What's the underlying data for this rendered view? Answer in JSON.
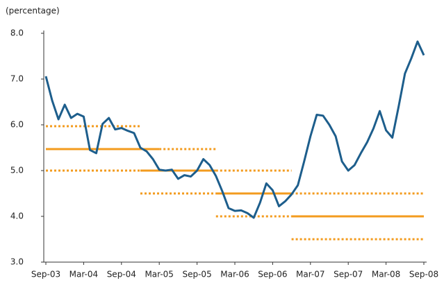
{
  "chart_data": {
    "type": "line",
    "y_label": "(percentage)",
    "categories": [
      "Sep-03",
      null,
      null,
      null,
      null,
      null,
      "Mar-04",
      null,
      null,
      null,
      null,
      null,
      "Sep-04",
      null,
      null,
      null,
      null,
      null,
      "Mar-05",
      null,
      null,
      null,
      null,
      null,
      "Sep-05",
      null,
      null,
      null,
      null,
      null,
      "Mar-06",
      null,
      null,
      null,
      null,
      null,
      "Sep-06",
      null,
      null,
      null,
      null,
      null,
      "Mar-07",
      null,
      null,
      null,
      null,
      null,
      "Sep-07",
      null,
      null,
      null,
      null,
      null,
      "Mar-08",
      null,
      null,
      null,
      null,
      null,
      "Sep-08"
    ],
    "ylim": [
      3,
      8
    ],
    "yticks": [
      {
        "value": 3,
        "label": "3.0"
      },
      {
        "value": 4,
        "label": "4.0"
      },
      {
        "value": 5,
        "label": "5.0"
      },
      {
        "value": 6,
        "label": "6.0"
      },
      {
        "value": 7,
        "label": "7.0"
      },
      {
        "value": 8,
        "label": "8.0"
      }
    ],
    "series": [
      {
        "color": "#1d5e8c",
        "width": 3,
        "dashed": false,
        "values": [
          7.06,
          6.53,
          6.12,
          6.44,
          6.15,
          6.24,
          6.18,
          5.45,
          5.38,
          6.02,
          6.15,
          5.9,
          5.93,
          5.87,
          5.82,
          5.5,
          5.42,
          5.25,
          5.02,
          5.0,
          5.02,
          4.82,
          4.9,
          4.87,
          5.0,
          5.25,
          5.12,
          4.88,
          4.55,
          4.18,
          4.12,
          4.13,
          4.07,
          3.97,
          4.3,
          4.72,
          4.57,
          4.22,
          4.33,
          4.48,
          4.68,
          5.2,
          5.75,
          6.22,
          6.2,
          6.0,
          5.75,
          5.2,
          5.0,
          5.12,
          5.38,
          5.62,
          5.92,
          6.3,
          5.88,
          5.72,
          6.4,
          7.12,
          7.45,
          7.82,
          7.52
        ]
      },
      {
        "color": "#f39b1e",
        "width": 3,
        "dashed": false,
        "values": [
          5.47,
          5.47,
          5.47,
          5.47,
          5.47,
          5.47,
          5.47,
          5.47,
          5.47,
          5.47,
          5.47,
          5.47,
          5.47,
          5.47,
          5.47,
          5.47,
          5.47,
          5.47,
          5.47,
          null,
          null,
          null,
          null,
          null,
          null,
          null,
          null,
          null,
          null,
          null,
          null,
          null,
          null,
          null,
          null,
          null,
          null,
          null,
          null,
          null,
          null,
          null,
          null,
          null,
          null,
          null,
          null,
          null,
          null,
          null,
          null,
          null,
          null,
          null,
          null,
          null,
          null,
          null,
          null,
          null,
          null
        ]
      },
      {
        "color": "#f39b1e",
        "width": 3,
        "dashed": false,
        "values": [
          null,
          null,
          null,
          null,
          null,
          null,
          null,
          null,
          null,
          null,
          null,
          null,
          null,
          null,
          null,
          5.0,
          5.0,
          5.0,
          5.0,
          5.0,
          5.0,
          5.0,
          5.0,
          5.0,
          5.0,
          5.0,
          5.0,
          5.0,
          null,
          null,
          null,
          null,
          null,
          null,
          null,
          null,
          null,
          null,
          null,
          null,
          null,
          null,
          null,
          null,
          null,
          null,
          null,
          null,
          null,
          null,
          null,
          null,
          null,
          null,
          null,
          null,
          null,
          null,
          null,
          null,
          null
        ]
      },
      {
        "color": "#f39b1e",
        "width": 3,
        "dashed": false,
        "values": [
          null,
          null,
          null,
          null,
          null,
          null,
          null,
          null,
          null,
          null,
          null,
          null,
          null,
          null,
          null,
          null,
          null,
          null,
          null,
          null,
          null,
          null,
          null,
          null,
          null,
          null,
          null,
          4.5,
          4.5,
          4.5,
          4.5,
          4.5,
          4.5,
          4.5,
          4.5,
          4.5,
          4.5,
          4.5,
          4.5,
          4.5,
          null,
          null,
          null,
          null,
          null,
          null,
          null,
          null,
          null,
          null,
          null,
          null,
          null,
          null,
          null,
          null,
          null,
          null,
          null,
          null,
          null
        ]
      },
      {
        "color": "#f39b1e",
        "width": 3,
        "dashed": false,
        "values": [
          null,
          null,
          null,
          null,
          null,
          null,
          null,
          null,
          null,
          null,
          null,
          null,
          null,
          null,
          null,
          null,
          null,
          null,
          null,
          null,
          null,
          null,
          null,
          null,
          null,
          null,
          null,
          null,
          null,
          null,
          null,
          null,
          null,
          null,
          null,
          null,
          null,
          null,
          null,
          4.0,
          4.0,
          4.0,
          4.0,
          4.0,
          4.0,
          4.0,
          4.0,
          4.0,
          4.0,
          4.0,
          4.0,
          4.0,
          4.0,
          4.0,
          4.0,
          4.0,
          4.0,
          4.0,
          4.0,
          4.0,
          4.0
        ]
      },
      {
        "color": "#f39b1e",
        "width": 3,
        "dashed": true,
        "values": [
          5.97,
          5.97,
          5.97,
          5.97,
          5.97,
          5.97,
          5.97,
          5.97,
          5.97,
          5.97,
          5.97,
          5.97,
          5.97,
          5.97,
          5.97,
          5.97,
          null,
          null,
          null,
          null,
          null,
          null,
          null,
          null,
          null,
          null,
          null,
          null,
          null,
          null,
          null,
          null,
          null,
          null,
          null,
          null,
          null,
          null,
          null,
          null,
          null,
          null,
          null,
          null,
          null,
          null,
          null,
          null,
          null,
          null,
          null,
          null,
          null,
          null,
          null,
          null,
          null,
          null,
          null,
          null,
          null
        ]
      },
      {
        "color": "#f39b1e",
        "width": 3,
        "dashed": true,
        "values": [
          5.0,
          5.0,
          5.0,
          5.0,
          5.0,
          5.0,
          5.0,
          5.0,
          5.0,
          5.0,
          5.0,
          5.0,
          5.0,
          5.0,
          5.0,
          5.0,
          null,
          null,
          null,
          null,
          null,
          null,
          null,
          null,
          null,
          null,
          null,
          null,
          null,
          null,
          null,
          null,
          null,
          null,
          null,
          null,
          null,
          null,
          null,
          null,
          null,
          null,
          null,
          null,
          null,
          null,
          null,
          null,
          null,
          null,
          null,
          null,
          null,
          null,
          null,
          null,
          null,
          null,
          null,
          null,
          null
        ]
      },
      {
        "color": "#f39b1e",
        "width": 3,
        "dashed": true,
        "values": [
          null,
          null,
          null,
          null,
          null,
          null,
          null,
          null,
          null,
          null,
          null,
          null,
          null,
          null,
          null,
          null,
          null,
          null,
          5.47,
          5.47,
          5.47,
          5.47,
          5.47,
          5.47,
          5.47,
          5.47,
          5.47,
          5.47,
          null,
          null,
          null,
          null,
          null,
          null,
          null,
          null,
          null,
          null,
          null,
          null,
          null,
          null,
          null,
          null,
          null,
          null,
          null,
          null,
          null,
          null,
          null,
          null,
          null,
          null,
          null,
          null,
          null,
          null,
          null,
          null,
          null
        ]
      },
      {
        "color": "#f39b1e",
        "width": 3,
        "dashed": true,
        "values": [
          null,
          null,
          null,
          null,
          null,
          null,
          null,
          null,
          null,
          null,
          null,
          null,
          null,
          null,
          null,
          4.5,
          4.5,
          4.5,
          4.5,
          4.5,
          4.5,
          4.5,
          4.5,
          4.5,
          4.5,
          4.5,
          4.5,
          4.5,
          null,
          null,
          null,
          null,
          null,
          null,
          null,
          null,
          null,
          null,
          null,
          null,
          null,
          null,
          null,
          null,
          null,
          null,
          null,
          null,
          null,
          null,
          null,
          null,
          null,
          null,
          null,
          null,
          null,
          null,
          null,
          null,
          null
        ]
      },
      {
        "color": "#f39b1e",
        "width": 3,
        "dashed": true,
        "values": [
          null,
          null,
          null,
          null,
          null,
          null,
          null,
          null,
          null,
          null,
          null,
          null,
          null,
          null,
          null,
          null,
          null,
          null,
          null,
          null,
          null,
          null,
          null,
          null,
          null,
          null,
          null,
          5.0,
          5.0,
          5.0,
          5.0,
          5.0,
          5.0,
          5.0,
          5.0,
          5.0,
          5.0,
          5.0,
          5.0,
          5.0,
          null,
          null,
          null,
          null,
          null,
          null,
          null,
          null,
          null,
          null,
          null,
          null,
          null,
          null,
          null,
          null,
          null,
          null,
          null,
          null,
          null
        ]
      },
      {
        "color": "#f39b1e",
        "width": 3,
        "dashed": true,
        "values": [
          null,
          null,
          null,
          null,
          null,
          null,
          null,
          null,
          null,
          null,
          null,
          null,
          null,
          null,
          null,
          null,
          null,
          null,
          null,
          null,
          null,
          null,
          null,
          null,
          null,
          null,
          null,
          4.0,
          4.0,
          4.0,
          4.0,
          4.0,
          4.0,
          4.0,
          4.0,
          4.0,
          4.0,
          4.0,
          4.0,
          4.0,
          null,
          null,
          null,
          null,
          null,
          null,
          null,
          null,
          null,
          null,
          null,
          null,
          null,
          null,
          null,
          null,
          null,
          null,
          null,
          null,
          null
        ]
      },
      {
        "color": "#f39b1e",
        "width": 3,
        "dashed": true,
        "values": [
          null,
          null,
          null,
          null,
          null,
          null,
          null,
          null,
          null,
          null,
          null,
          null,
          null,
          null,
          null,
          null,
          null,
          null,
          null,
          null,
          null,
          null,
          null,
          null,
          null,
          null,
          null,
          null,
          null,
          null,
          null,
          null,
          null,
          null,
          null,
          null,
          null,
          null,
          null,
          4.5,
          4.5,
          4.5,
          4.5,
          4.5,
          4.5,
          4.5,
          4.5,
          4.5,
          4.5,
          4.5,
          4.5,
          4.5,
          4.5,
          4.5,
          4.5,
          4.5,
          4.5,
          4.5,
          4.5,
          4.5,
          4.5
        ]
      },
      {
        "color": "#f39b1e",
        "width": 3,
        "dashed": true,
        "values": [
          null,
          null,
          null,
          null,
          null,
          null,
          null,
          null,
          null,
          null,
          null,
          null,
          null,
          null,
          null,
          null,
          null,
          null,
          null,
          null,
          null,
          null,
          null,
          null,
          null,
          null,
          null,
          null,
          null,
          null,
          null,
          null,
          null,
          null,
          null,
          null,
          null,
          null,
          null,
          3.5,
          3.5,
          3.5,
          3.5,
          3.5,
          3.5,
          3.5,
          3.5,
          3.5,
          3.5,
          3.5,
          3.5,
          3.5,
          3.5,
          3.5,
          3.5,
          3.5,
          3.5,
          3.5,
          3.5,
          3.5,
          3.5
        ]
      }
    ]
  }
}
